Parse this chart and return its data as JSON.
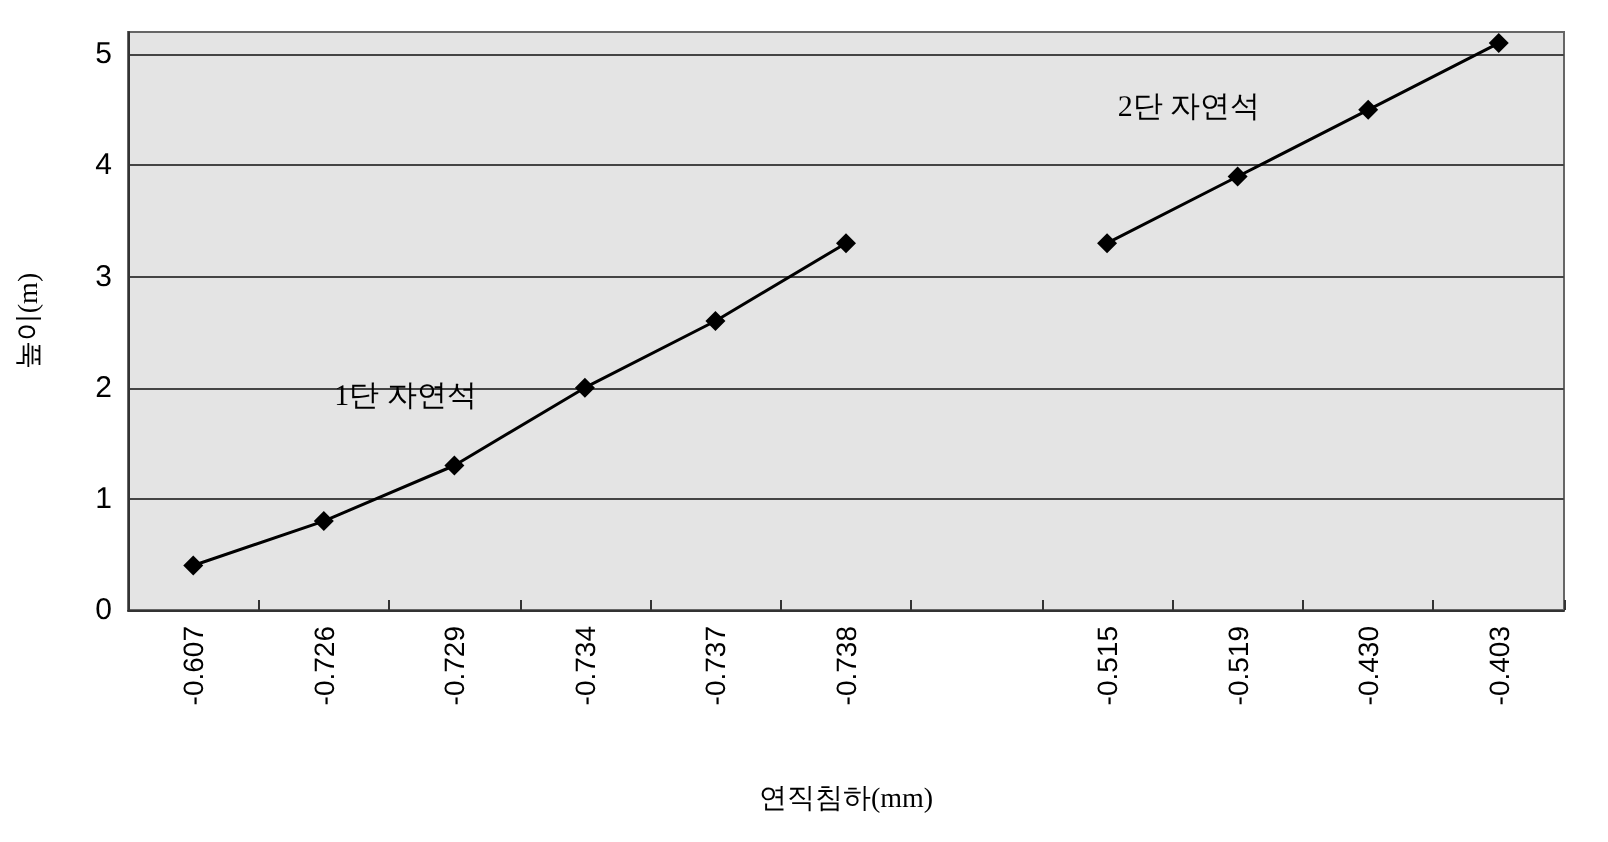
{
  "chart_data": {
    "type": "line",
    "xlabel": "연직침하(mm)",
    "ylabel": "높이(m)",
    "categories": [
      "-0.607",
      "-0.726",
      "-0.729",
      "-0.734",
      "-0.737",
      "-0.738",
      null,
      "-0.515",
      "-0.519",
      "-0.430",
      "-0.403"
    ],
    "series": [
      {
        "name": "1단 자연석",
        "color": "#000000",
        "values": [
          0.4,
          0.8,
          1.3,
          2.0,
          2.6,
          3.3,
          null,
          null,
          null,
          null,
          null
        ]
      },
      {
        "name": "2단 자연석",
        "color": "#000000",
        "values": [
          null,
          null,
          null,
          null,
          null,
          null,
          null,
          3.3,
          3.9,
          4.5,
          5.1
        ]
      }
    ],
    "ylim": [
      0,
      5.2
    ],
    "yticks": [
      0,
      1,
      2,
      3,
      4,
      5
    ],
    "grid": "y",
    "legend": false,
    "marker": "diamond",
    "line_style": "solid"
  }
}
